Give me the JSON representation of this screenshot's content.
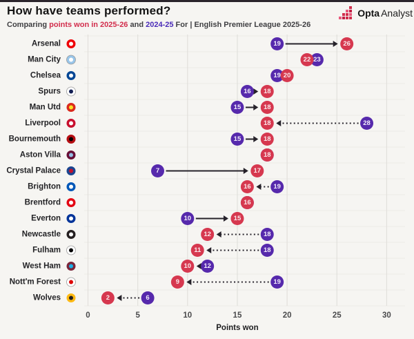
{
  "header": {
    "title": "How have teams performed?",
    "subtitle": {
      "prefix": "Comparing ",
      "highlight_red": "points won in 2025-26",
      "middle": " and ",
      "highlight_purple": "2024-25",
      "suffix": " For | English Premier League 2025-26"
    },
    "logo": {
      "bold": "Opta",
      "regular": "Analyst"
    }
  },
  "colors": {
    "season_2025_26": "#d6384f",
    "season_2024_25": "#5629ac",
    "arrow": "#26222a",
    "grid_vertical": "#e2e0dc",
    "grid_horizontal": "#eceae6",
    "background": "#f6f5f2",
    "tick_text": "#4a4a4c",
    "team_text": "#232326"
  },
  "chart_data": {
    "type": "dumbbell",
    "title": "How have teams performed?",
    "xlabel": "Points won",
    "ylabel": "",
    "x_ticks": [
      0,
      5,
      10,
      15,
      20,
      25,
      30
    ],
    "xlim": [
      0,
      31
    ],
    "grid": true,
    "series": [
      {
        "name": "2025-26",
        "color": "#d6384f"
      },
      {
        "name": "2024-25",
        "color": "#5629ac"
      }
    ],
    "teams": [
      {
        "name": "Arsenal",
        "pts_2025_26": 26,
        "pts_2024_25": 19,
        "badge": [
          "#ef0107",
          "#ffffff"
        ]
      },
      {
        "name": "Man City",
        "pts_2025_26": 22,
        "pts_2024_25": 23,
        "badge": [
          "#98c5e9",
          "#ffffff"
        ]
      },
      {
        "name": "Chelsea",
        "pts_2025_26": 20,
        "pts_2024_25": 19,
        "badge": [
          "#034694",
          "#ffffff"
        ]
      },
      {
        "name": "Spurs",
        "pts_2025_26": 18,
        "pts_2024_25": 16,
        "badge": [
          "#ffffff",
          "#131f53"
        ]
      },
      {
        "name": "Man Utd",
        "pts_2025_26": 18,
        "pts_2024_25": 15,
        "badge": [
          "#da291c",
          "#fbe122"
        ]
      },
      {
        "name": "Liverpool",
        "pts_2025_26": 18,
        "pts_2024_25": 28,
        "badge": [
          "#c8102e",
          "#ffffff"
        ]
      },
      {
        "name": "Bournemouth",
        "pts_2025_26": 18,
        "pts_2024_25": 15,
        "badge": [
          "#b50e12",
          "#000000"
        ]
      },
      {
        "name": "Aston Villa",
        "pts_2025_26": 18,
        "pts_2024_25": 18,
        "badge": [
          "#670e36",
          "#95bfe5"
        ]
      },
      {
        "name": "Crystal Palace",
        "pts_2025_26": 17,
        "pts_2024_25": 7,
        "badge": [
          "#1b458f",
          "#c4122e"
        ]
      },
      {
        "name": "Brighton",
        "pts_2025_26": 16,
        "pts_2024_25": 19,
        "badge": [
          "#0057b8",
          "#ffffff"
        ]
      },
      {
        "name": "Brentford",
        "pts_2025_26": 16,
        "pts_2024_25": 16,
        "badge": [
          "#e30613",
          "#ffffff"
        ]
      },
      {
        "name": "Everton",
        "pts_2025_26": 15,
        "pts_2024_25": 10,
        "badge": [
          "#003399",
          "#ffffff"
        ]
      },
      {
        "name": "Newcastle",
        "pts_2025_26": 12,
        "pts_2024_25": 18,
        "badge": [
          "#241f20",
          "#ffffff"
        ]
      },
      {
        "name": "Fulham",
        "pts_2025_26": 11,
        "pts_2024_25": 18,
        "badge": [
          "#ffffff",
          "#000000"
        ]
      },
      {
        "name": "West Ham",
        "pts_2025_26": 10,
        "pts_2024_25": 12,
        "badge": [
          "#7a263a",
          "#1bb1e7"
        ]
      },
      {
        "name": "Nott'm Forest",
        "pts_2025_26": 9,
        "pts_2024_25": 19,
        "badge": [
          "#ffffff",
          "#dd0000"
        ]
      },
      {
        "name": "Wolves",
        "pts_2025_26": 2,
        "pts_2024_25": 6,
        "badge": [
          "#fdb913",
          "#231f20"
        ]
      }
    ]
  }
}
